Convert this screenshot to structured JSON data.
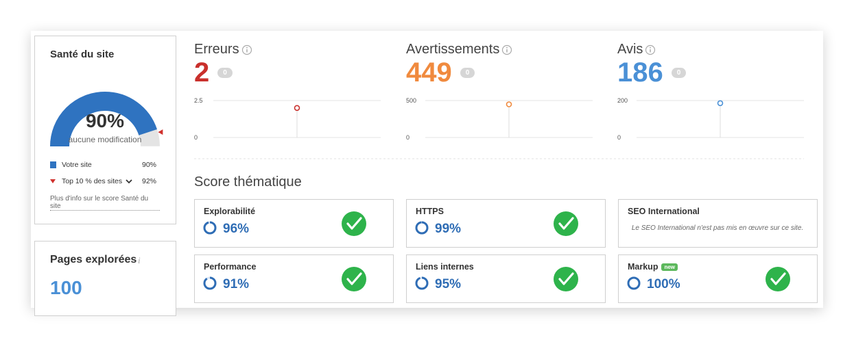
{
  "site_health": {
    "title": "Santé du site",
    "score": {
      "value": 90,
      "label": "90%"
    },
    "status": "aucune modification",
    "legend": [
      {
        "label": "Votre site",
        "value": {
          "value": 90,
          "label": "90%"
        }
      },
      {
        "label": "Top 10 % des sites",
        "value": {
          "value": 92,
          "label": "92%"
        }
      }
    ],
    "link": "Plus d'info sur le score Santé du site"
  },
  "pages_crawled": {
    "title": "Pages explorées",
    "value": 100
  },
  "metrics": [
    {
      "label": "Erreurs",
      "value": 2,
      "badge": 0,
      "color": "#c9302c",
      "ylim": [
        0,
        2.5
      ],
      "yticks": [
        0,
        2.5
      ]
    },
    {
      "label": "Avertissements",
      "value": 449,
      "badge": 0,
      "color": "#f08a3e",
      "ylim": [
        0,
        500
      ],
      "yticks": [
        0,
        500
      ]
    },
    {
      "label": "Avis",
      "value": 186,
      "badge": 0,
      "color": "#4a90d6",
      "ylim": [
        0,
        200
      ],
      "yticks": [
        0,
        200
      ]
    }
  ],
  "topics": {
    "title": "Score thématique",
    "cards": [
      {
        "title": "Explorabilité",
        "score": {
          "value": 96,
          "label": "96%"
        }
      },
      {
        "title": "HTTPS",
        "score": {
          "value": 99,
          "label": "99%"
        }
      },
      {
        "title": "SEO International",
        "note": "Le SEO International n'est pas mis en œuvre sur ce site."
      },
      {
        "title": "Performance",
        "score": {
          "value": 91,
          "label": "91%"
        }
      },
      {
        "title": "Liens internes",
        "score": {
          "value": 95,
          "label": "95%"
        }
      },
      {
        "title": "Markup",
        "badge": "new",
        "score": {
          "value": 100,
          "label": "100%"
        }
      }
    ]
  }
}
